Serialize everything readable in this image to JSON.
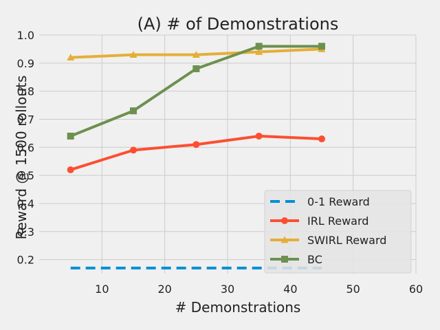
{
  "chart_data": {
    "type": "line",
    "title": "(A) # of Demonstrations",
    "xlabel": "# Demonstrations",
    "ylabel": "Reward @ 1500 rollouts",
    "xlim": [
      0,
      60
    ],
    "ylim": [
      0.15,
      1.0
    ],
    "xticks": [
      10,
      20,
      30,
      40,
      50,
      60
    ],
    "yticks": [
      0.2,
      0.3,
      0.4,
      0.5,
      0.6,
      0.7,
      0.8,
      0.9,
      1.0
    ],
    "grid": true,
    "legend_position": "bottom-right",
    "x": [
      5,
      15,
      25,
      35,
      45
    ],
    "series": [
      {
        "name": "0-1 Reward",
        "values": [
          0.17,
          0.17,
          0.17,
          0.17,
          0.17
        ],
        "color": "#008fd5",
        "style": "dashed",
        "marker": "none"
      },
      {
        "name": "IRL Reward",
        "values": [
          0.52,
          0.59,
          0.61,
          0.64,
          0.63
        ],
        "color": "#fc4f30",
        "style": "solid",
        "marker": "circle"
      },
      {
        "name": "SWIRL Reward",
        "values": [
          0.92,
          0.93,
          0.93,
          0.94,
          0.95
        ],
        "color": "#e5ae38",
        "style": "solid",
        "marker": "triangle"
      },
      {
        "name": "BC",
        "values": [
          0.64,
          0.73,
          0.88,
          0.96,
          0.96
        ],
        "color": "#6d904f",
        "style": "solid",
        "marker": "square"
      }
    ]
  }
}
